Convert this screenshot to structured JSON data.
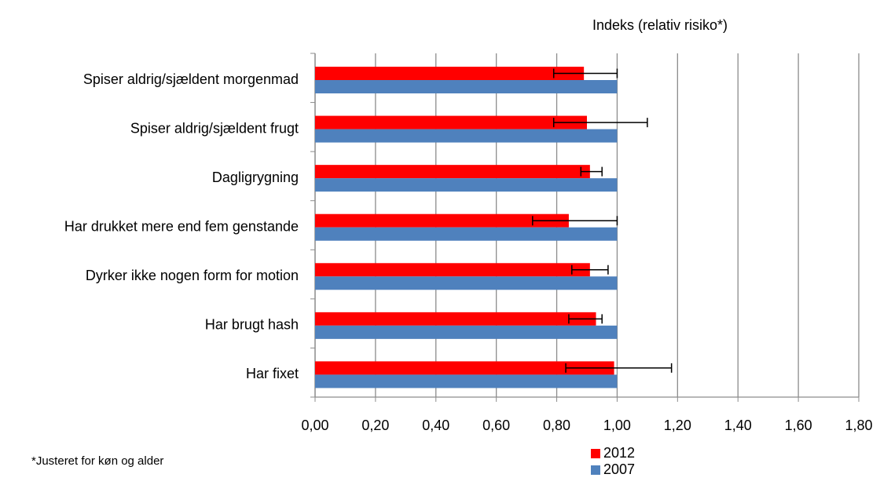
{
  "chart_data": {
    "type": "hbar",
    "axis_title": "Indeks (relativ risiko*)",
    "footnote": "*Justeret for køn og alder",
    "categories": [
      "Spiser aldrig/sjældent morgenmad",
      "Spiser aldrig/sjældent frugt",
      "Dagligrygning",
      "Har drukket mere end fem genstande",
      "Dyrker ikke nogen form for motion",
      "Har brugt hash",
      "Har fixet"
    ],
    "series": [
      {
        "name": "2012",
        "color": "#ff0000",
        "values": [
          0.89,
          0.9,
          0.91,
          0.84,
          0.91,
          0.93,
          0.99
        ],
        "ci_low": [
          0.79,
          0.79,
          0.88,
          0.72,
          0.85,
          0.84,
          0.83
        ],
        "ci_high": [
          1.0,
          1.1,
          0.95,
          1.0,
          0.97,
          0.95,
          1.18
        ]
      },
      {
        "name": "2007",
        "color": "#4f81bd",
        "values": [
          1.0,
          1.0,
          1.0,
          1.0,
          1.0,
          1.0,
          1.0
        ]
      }
    ],
    "xlim": [
      0,
      1.8
    ],
    "xticks": [
      {
        "value": 0,
        "label": "0,00"
      },
      {
        "value": 0.2,
        "label": "0,20"
      },
      {
        "value": 0.4,
        "label": "0,40"
      },
      {
        "value": 0.6,
        "label": "0,60"
      },
      {
        "value": 0.8,
        "label": "0,80"
      },
      {
        "value": 1.0,
        "label": "1,00"
      },
      {
        "value": 1.2,
        "label": "1,20"
      },
      {
        "value": 1.4,
        "label": "1,40"
      },
      {
        "value": 1.6,
        "label": "1,60"
      },
      {
        "value": 1.8,
        "label": "1,80"
      }
    ],
    "grid": true,
    "legend": "bottom"
  }
}
